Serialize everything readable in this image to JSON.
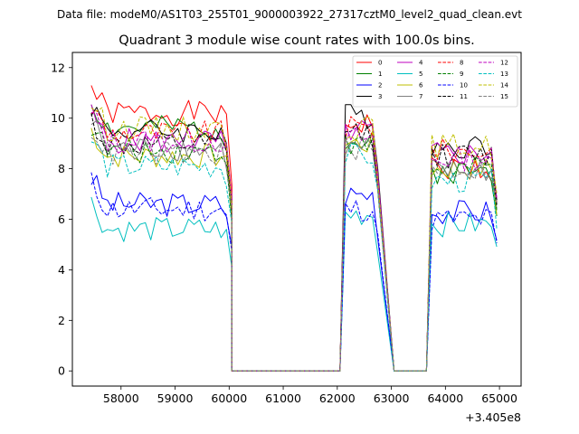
{
  "chart_data": {
    "type": "line",
    "suptitle": "Data file: modeM0/AS1T03_255T01_9000003922_27317cztM0_level2_quad_clean.evt",
    "title": "Quadrant 3 module wise count rates with 100.0s bins.",
    "xlabel": "",
    "ylabel": "",
    "x_offset_label": "+3.405e8",
    "xlim": [
      57100,
      65400
    ],
    "ylim": [
      -0.6,
      12.6
    ],
    "x_ticks": [
      58000,
      59000,
      60000,
      61000,
      62000,
      63000,
      64000,
      65000
    ],
    "y_ticks": [
      0,
      2,
      4,
      6,
      8,
      10,
      12
    ],
    "legend_location": "upper-right",
    "segments": [
      {
        "start": 57450,
        "count": 27
      },
      {
        "start": 62150,
        "count": 7
      },
      {
        "start": 63750,
        "count": 13
      }
    ],
    "gap_ranges": [
      [
        60050,
        62050
      ],
      [
        63050,
        63650
      ]
    ],
    "series": [
      {
        "name": "0",
        "color": "#ff0000",
        "dash": "solid",
        "levels": [
          10.2,
          9.8,
          8.0
        ],
        "seed": 1
      },
      {
        "name": "1",
        "color": "#008000",
        "dash": "solid",
        "levels": [
          9.6,
          9.0,
          7.9
        ],
        "seed": 2
      },
      {
        "name": "2",
        "color": "#0000ff",
        "dash": "solid",
        "levels": [
          6.6,
          7.0,
          6.3
        ],
        "seed": 3
      },
      {
        "name": "3",
        "color": "#000000",
        "dash": "solid",
        "levels": [
          9.5,
          10.1,
          8.9
        ],
        "seed": 4
      },
      {
        "name": "4",
        "color": "#bf00bf",
        "dash": "solid",
        "levels": [
          9.1,
          9.5,
          8.6
        ],
        "seed": 5
      },
      {
        "name": "5",
        "color": "#00bfbf",
        "dash": "solid",
        "levels": [
          5.6,
          6.2,
          5.8
        ],
        "seed": 6
      },
      {
        "name": "6",
        "color": "#bfbf00",
        "dash": "solid",
        "levels": [
          8.5,
          9.0,
          8.0
        ],
        "seed": 7
      },
      {
        "name": "7",
        "color": "#808080",
        "dash": "solid",
        "levels": [
          8.8,
          8.8,
          7.9
        ],
        "seed": 8
      },
      {
        "name": "8",
        "color": "#ff0000",
        "dash": "dashed",
        "levels": [
          9.4,
          9.6,
          8.7
        ],
        "seed": 9
      },
      {
        "name": "9",
        "color": "#008000",
        "dash": "dashed",
        "levels": [
          8.7,
          8.9,
          8.0
        ],
        "seed": 10
      },
      {
        "name": "10",
        "color": "#0000ff",
        "dash": "dashed",
        "levels": [
          6.4,
          6.4,
          6.0
        ],
        "seed": 11
      },
      {
        "name": "11",
        "color": "#000000",
        "dash": "dashed",
        "levels": [
          8.9,
          9.4,
          8.5
        ],
        "seed": 12
      },
      {
        "name": "12",
        "color": "#bf00bf",
        "dash": "dashed",
        "levels": [
          9.1,
          9.2,
          8.4
        ],
        "seed": 13
      },
      {
        "name": "13",
        "color": "#00bfbf",
        "dash": "dashed",
        "levels": [
          8.1,
          8.5,
          7.5
        ],
        "seed": 14
      },
      {
        "name": "14",
        "color": "#bfbf00",
        "dash": "dashed",
        "levels": [
          9.6,
          9.6,
          8.9
        ],
        "seed": 15
      },
      {
        "name": "15",
        "color": "#808080",
        "dash": "dashed",
        "levels": [
          8.6,
          8.8,
          8.0
        ],
        "seed": 16
      }
    ]
  }
}
